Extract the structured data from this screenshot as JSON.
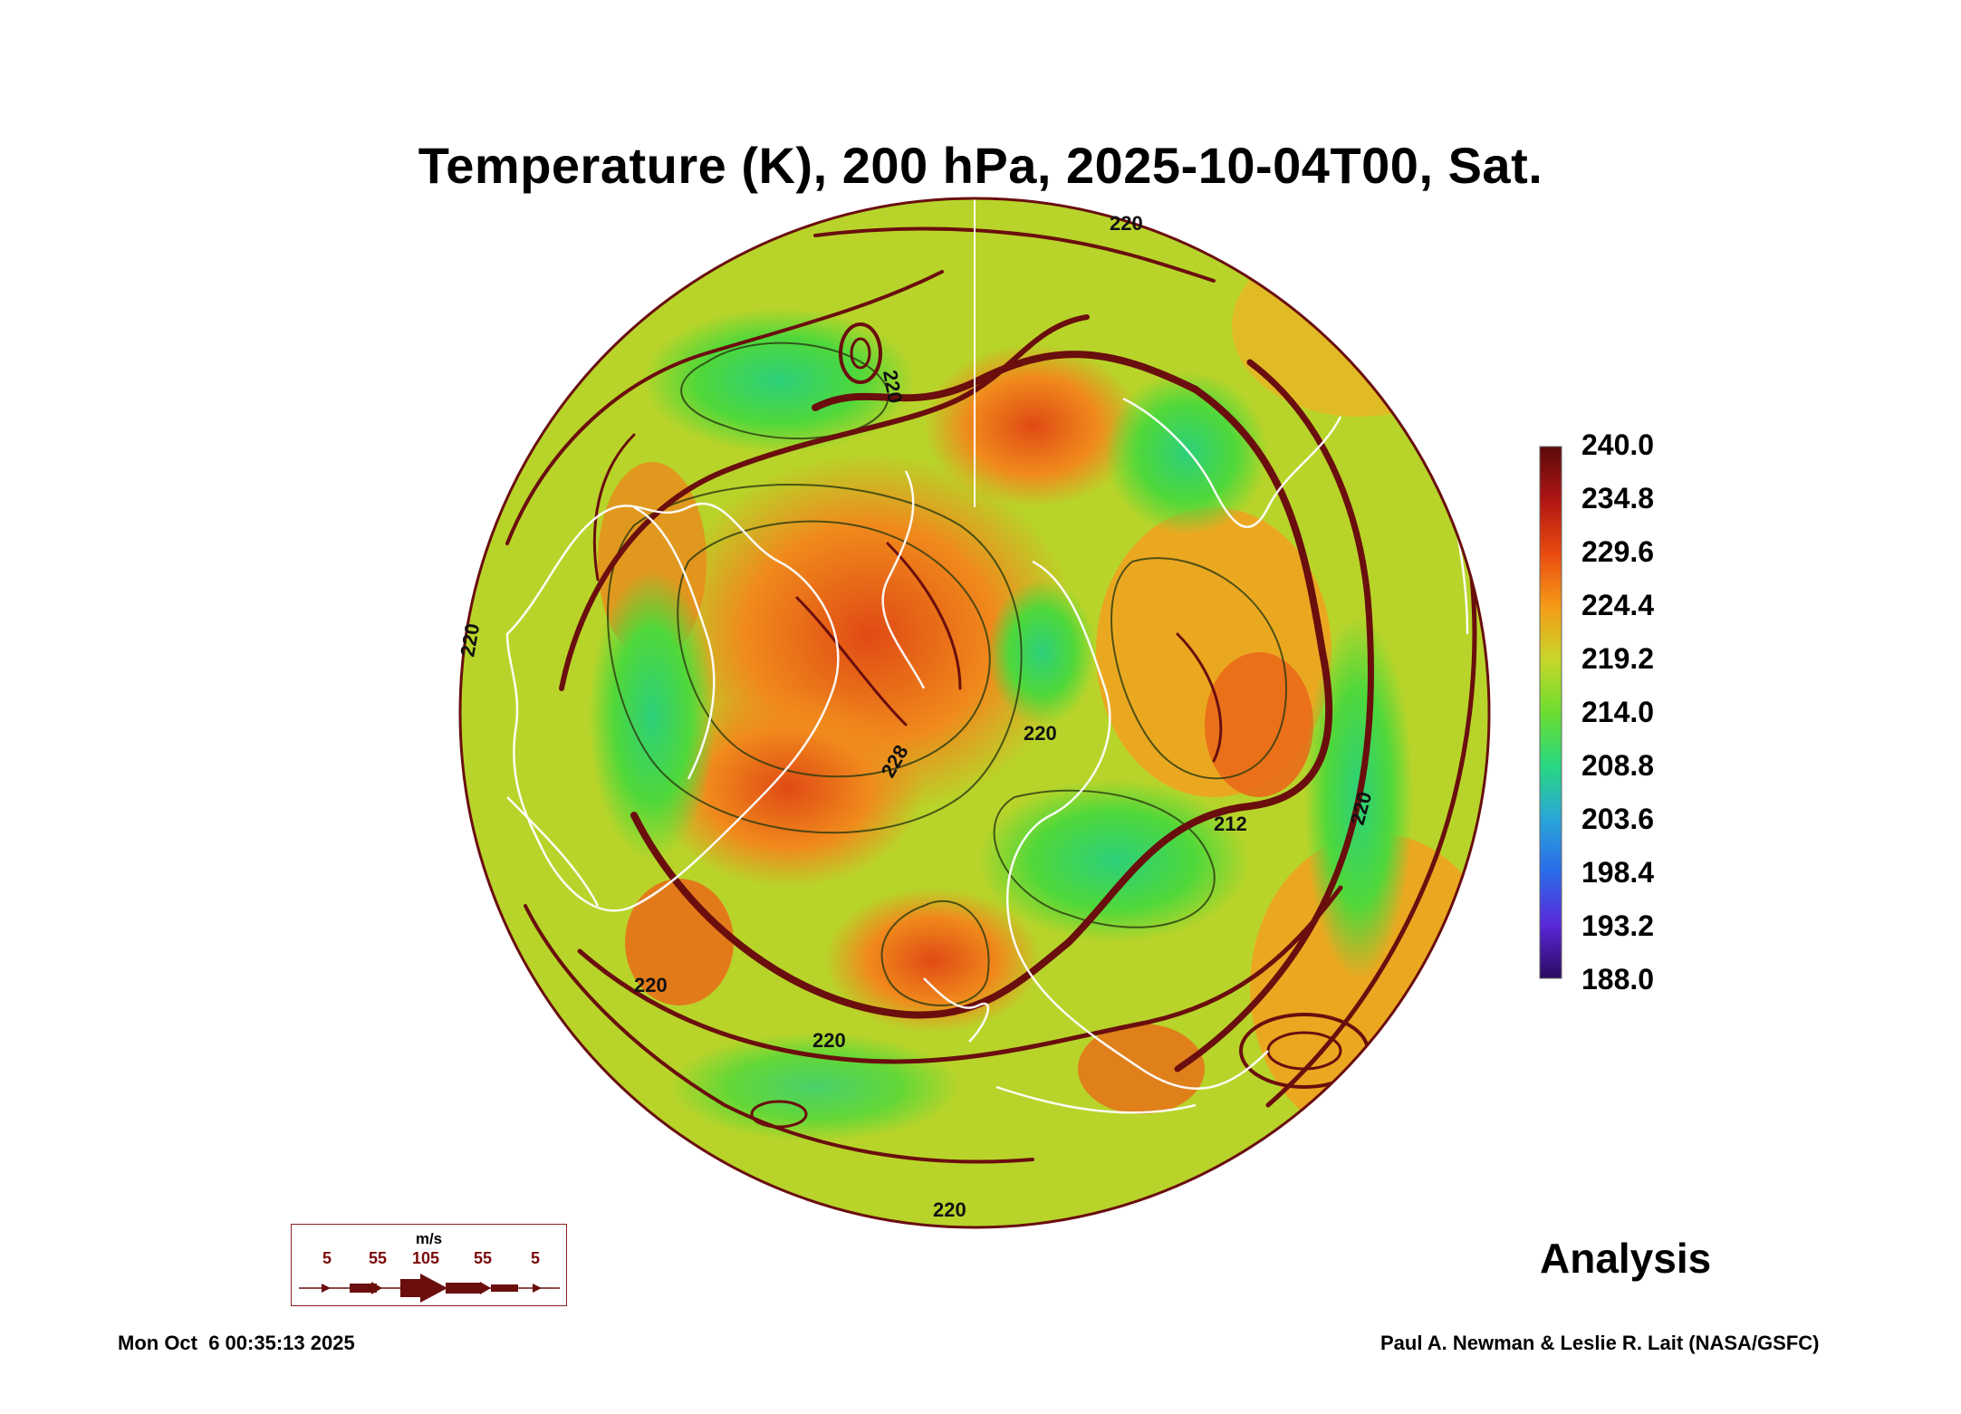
{
  "title": "Temperature (K), 200 hPa, 2025-10-04T00, Sat.",
  "colorbar": {
    "labels": [
      "240.0",
      "234.8",
      "229.6",
      "224.4",
      "219.2",
      "214.0",
      "208.8",
      "203.6",
      "198.4",
      "193.2",
      "188.0"
    ],
    "colors": [
      "#5a0a0a",
      "#b01515",
      "#e84a10",
      "#f59a18",
      "#c8d62a",
      "#6cdd30",
      "#28d880",
      "#2aa6d8",
      "#2a6ae8",
      "#5a28d8",
      "#2a0a60"
    ]
  },
  "contour_labels": [
    "220",
    "220",
    "220",
    "220",
    "220",
    "212",
    "220",
    "220",
    "228",
    "220"
  ],
  "map_colors": {
    "base": "#b8d42a",
    "warm": "#f08a1c",
    "hot": "#e04a14",
    "cool": "#50d83a",
    "cold": "#2cd07a",
    "streamline": "#6a0e0e",
    "coast": "#ffffff"
  },
  "wind_legend": {
    "unit": "m/s",
    "ticks": [
      "5",
      "55",
      "105",
      "55",
      "5"
    ]
  },
  "analysis_label": "Analysis",
  "timestamp": "Mon Oct  6 00:35:13 2025",
  "credit": "Paul A. Newman & Leslie R. Lait (NASA/GSFC)"
}
